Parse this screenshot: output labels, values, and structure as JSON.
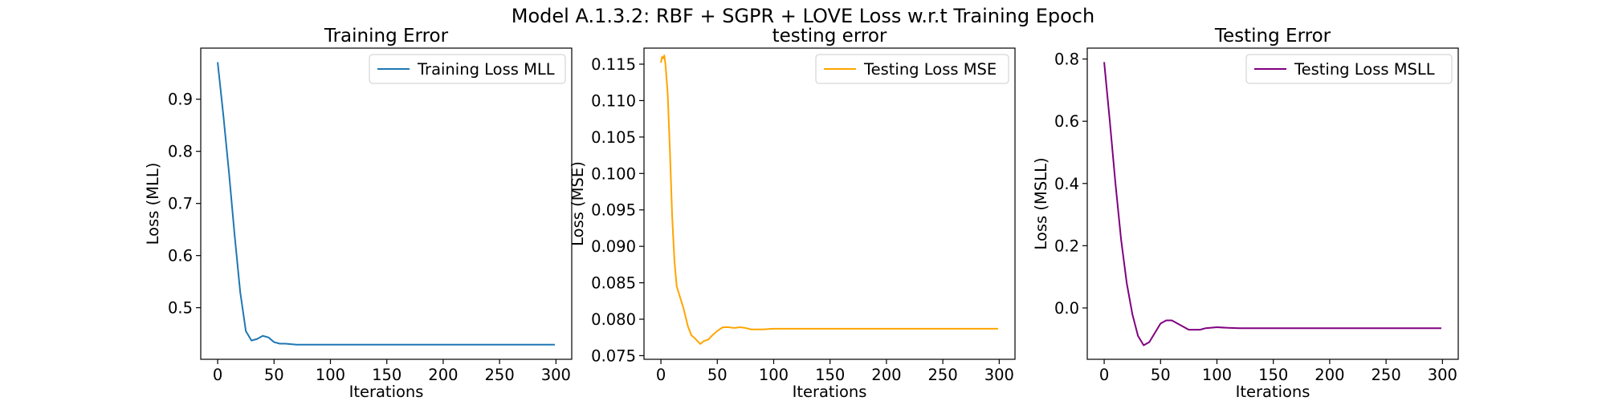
{
  "figure": {
    "suptitle": "Model A.1.3.2: RBF + SGPR + LOVE Loss w.r.t Training Epoch"
  },
  "chart_data": [
    {
      "type": "line",
      "title": "Training Error",
      "xlabel": "Iterations",
      "ylabel": "Loss (MLL)",
      "xlim": [
        -15,
        314
      ],
      "ylim": [
        0.401,
        0.998
      ],
      "xticks": [
        0,
        50,
        100,
        150,
        200,
        250,
        300
      ],
      "xtick_labels": [
        "0",
        "50",
        "100",
        "150",
        "200",
        "250",
        "300"
      ],
      "yticks": [
        0.5,
        0.6,
        0.7,
        0.8,
        0.9
      ],
      "ytick_labels": [
        "0.5",
        "0.6",
        "0.7",
        "0.8",
        "0.9"
      ],
      "legend": "top-right",
      "grid": false,
      "series": [
        {
          "name": "Training Loss MLL",
          "color": "#1f77b4",
          "x": [
            0,
            5,
            10,
            15,
            20,
            25,
            30,
            35,
            40,
            45,
            50,
            55,
            60,
            65,
            70,
            80,
            100,
            150,
            200,
            250,
            299
          ],
          "y": [
            0.971,
            0.87,
            0.76,
            0.64,
            0.53,
            0.455,
            0.437,
            0.44,
            0.446,
            0.443,
            0.434,
            0.431,
            0.431,
            0.43,
            0.429,
            0.429,
            0.429,
            0.429,
            0.429,
            0.429,
            0.429
          ]
        }
      ]
    },
    {
      "type": "line",
      "title": "testing error",
      "xlabel": "Iterations",
      "ylabel": "Loss (MSE)",
      "xlim": [
        -15,
        314
      ],
      "ylim": [
        0.0745,
        0.1172
      ],
      "xticks": [
        0,
        50,
        100,
        150,
        200,
        250,
        300
      ],
      "xtick_labels": [
        "0",
        "50",
        "100",
        "150",
        "200",
        "250",
        "300"
      ],
      "yticks": [
        0.075,
        0.08,
        0.085,
        0.09,
        0.095,
        0.1,
        0.105,
        0.11,
        0.115
      ],
      "ytick_labels": [
        "0.075",
        "0.080",
        "0.085",
        "0.090",
        "0.095",
        "0.100",
        "0.105",
        "0.110",
        "0.115"
      ],
      "legend": "top-right",
      "grid": false,
      "series": [
        {
          "name": "Testing Loss MSE",
          "color": "#ffa500",
          "x": [
            0,
            1,
            2,
            3,
            4,
            6,
            8,
            10,
            12,
            14,
            17,
            20,
            24,
            27,
            30,
            35,
            38,
            42,
            45,
            50,
            55,
            60,
            65,
            70,
            75,
            80,
            90,
            100,
            120,
            150,
            200,
            250,
            299
          ],
          "y": [
            0.1152,
            0.116,
            0.1158,
            0.1162,
            0.115,
            0.111,
            0.103,
            0.094,
            0.088,
            0.0845,
            0.083,
            0.0815,
            0.079,
            0.0778,
            0.0774,
            0.0766,
            0.077,
            0.0772,
            0.0777,
            0.0784,
            0.0789,
            0.0789,
            0.0788,
            0.0789,
            0.0788,
            0.0786,
            0.0786,
            0.0787,
            0.0787,
            0.0787,
            0.0787,
            0.0787,
            0.0787
          ]
        }
      ]
    },
    {
      "type": "line",
      "title": "Testing Error",
      "xlabel": "Iterations",
      "ylabel": "Loss (MSLL)",
      "xlim": [
        -15,
        314
      ],
      "ylim": [
        -0.165,
        0.835
      ],
      "xticks": [
        0,
        50,
        100,
        150,
        200,
        250,
        300
      ],
      "xtick_labels": [
        "0",
        "50",
        "100",
        "150",
        "200",
        "250",
        "300"
      ],
      "yticks": [
        0.0,
        0.2,
        0.4,
        0.6,
        0.8
      ],
      "ytick_labels": [
        "0.0",
        "0.2",
        "0.4",
        "0.6",
        "0.8"
      ],
      "legend": "top-right",
      "grid": false,
      "series": [
        {
          "name": "Testing Loss MSLL",
          "color": "#800080",
          "x": [
            0,
            5,
            10,
            15,
            20,
            25,
            30,
            35,
            40,
            45,
            50,
            55,
            60,
            65,
            70,
            75,
            80,
            85,
            90,
            100,
            110,
            120,
            150,
            200,
            250,
            299
          ],
          "y": [
            0.79,
            0.6,
            0.4,
            0.22,
            0.08,
            -0.02,
            -0.09,
            -0.12,
            -0.11,
            -0.08,
            -0.05,
            -0.04,
            -0.04,
            -0.05,
            -0.06,
            -0.07,
            -0.07,
            -0.07,
            -0.065,
            -0.062,
            -0.064,
            -0.065,
            -0.065,
            -0.065,
            -0.065,
            -0.065
          ]
        }
      ]
    }
  ]
}
